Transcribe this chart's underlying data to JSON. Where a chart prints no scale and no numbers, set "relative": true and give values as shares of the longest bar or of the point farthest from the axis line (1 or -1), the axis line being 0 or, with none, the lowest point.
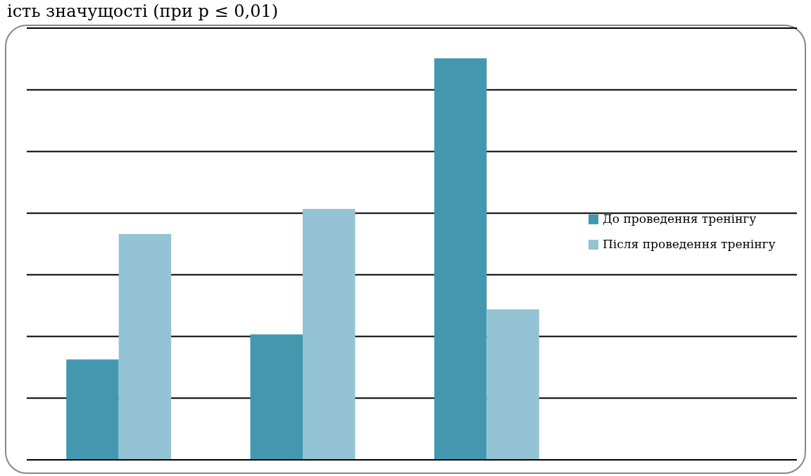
{
  "chart_data": {
    "type": "bar",
    "title": "ість значущості (при р ≤ 0,01)",
    "categories": [
      null,
      null,
      null
    ],
    "series": [
      {
        "name": "До проведення тренінгу",
        "color": "#4398b0",
        "values": [
          0.25,
          0.3125,
          1
        ]
      },
      {
        "name": "Після проведення тренінгу",
        "color": "#93c3d4",
        "values": [
          0.5625,
          0.625,
          0.375
        ]
      }
    ],
    "relative": true,
    "grid": true,
    "legend": "right"
  }
}
